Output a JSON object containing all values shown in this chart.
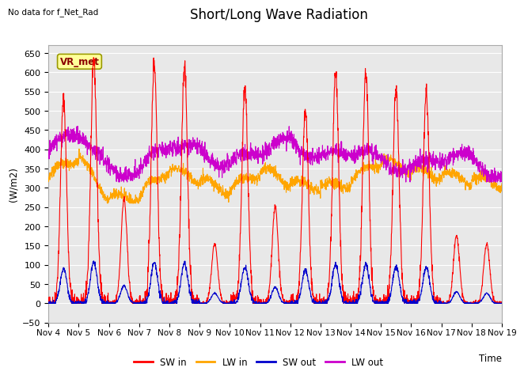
{
  "title": "Short/Long Wave Radiation",
  "ylabel": "(W/m2)",
  "xlabel": "Time",
  "note": "No data for f_Net_Rad",
  "station_label": "VR_met",
  "ylim": [
    -50,
    670
  ],
  "yticks": [
    -50,
    0,
    50,
    100,
    150,
    200,
    250,
    300,
    350,
    400,
    450,
    500,
    550,
    600,
    650
  ],
  "x_tick_labels": [
    "Nov 4",
    "Nov 5",
    "Nov 6",
    "Nov 7",
    "Nov 8",
    "Nov 9",
    "Nov 10",
    "Nov 11",
    "Nov 12",
    "Nov 13",
    "Nov 14",
    "Nov 15",
    "Nov 16",
    "Nov 17",
    "Nov 18",
    "Nov 19"
  ],
  "colors": {
    "SW_in": "#ff0000",
    "LW_in": "#ffa500",
    "SW_out": "#0000cc",
    "LW_out": "#cc00cc"
  },
  "legend": [
    "SW in",
    "LW in",
    "SW out",
    "LW out"
  ],
  "background_color": "#e8e8e8",
  "fig_background": "#ffffff",
  "title_fontsize": 12,
  "axis_fontsize": 8,
  "num_days": 15,
  "points_per_day": 144,
  "sw_peaks": [
    530,
    630,
    270,
    625,
    615,
    155,
    560,
    250,
    500,
    600,
    600,
    555,
    550,
    175,
    155
  ],
  "lw_in_base": [
    310,
    375,
    290,
    275,
    330,
    330,
    305,
    330,
    305,
    320,
    310,
    355,
    355,
    345,
    305,
    305
  ],
  "lw_out_base": [
    380,
    435,
    370,
    340,
    395,
    415,
    365,
    375,
    435,
    390,
    375,
    375,
    370,
    360,
    370,
    345
  ]
}
